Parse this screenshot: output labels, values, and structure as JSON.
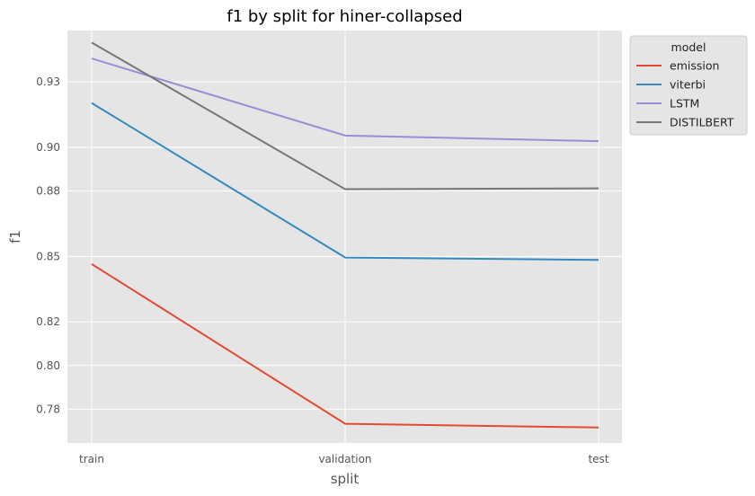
{
  "chart_data": {
    "type": "line",
    "title": "f1 by split for hiner-collapsed",
    "xlabel": "split",
    "ylabel": "f1",
    "categories": [
      "train",
      "validation",
      "test"
    ],
    "ylim": [
      0.7645,
      0.9535
    ],
    "yticks": [
      0.78,
      0.8,
      0.82,
      0.85,
      0.88,
      0.9,
      0.93
    ],
    "ytick_labels": [
      "0.78",
      "0.80",
      "0.82",
      "0.85",
      "0.88",
      "0.90",
      "0.93"
    ],
    "grid": true,
    "legend": {
      "title": "model",
      "placement": "outside upper right"
    },
    "series": [
      {
        "name": "emission",
        "color": "#E24A33",
        "values": [
          0.8465,
          0.7733,
          0.7716
        ]
      },
      {
        "name": "viterbi",
        "color": "#348ABD",
        "values": [
          0.9203,
          0.8495,
          0.8484
        ]
      },
      {
        "name": "LSTM",
        "color": "#988ED5",
        "values": [
          0.9407,
          0.9054,
          0.9028
        ]
      },
      {
        "name": "DISTILBERT",
        "color": "#777777",
        "values": [
          0.948,
          0.8808,
          0.8812
        ]
      }
    ]
  }
}
